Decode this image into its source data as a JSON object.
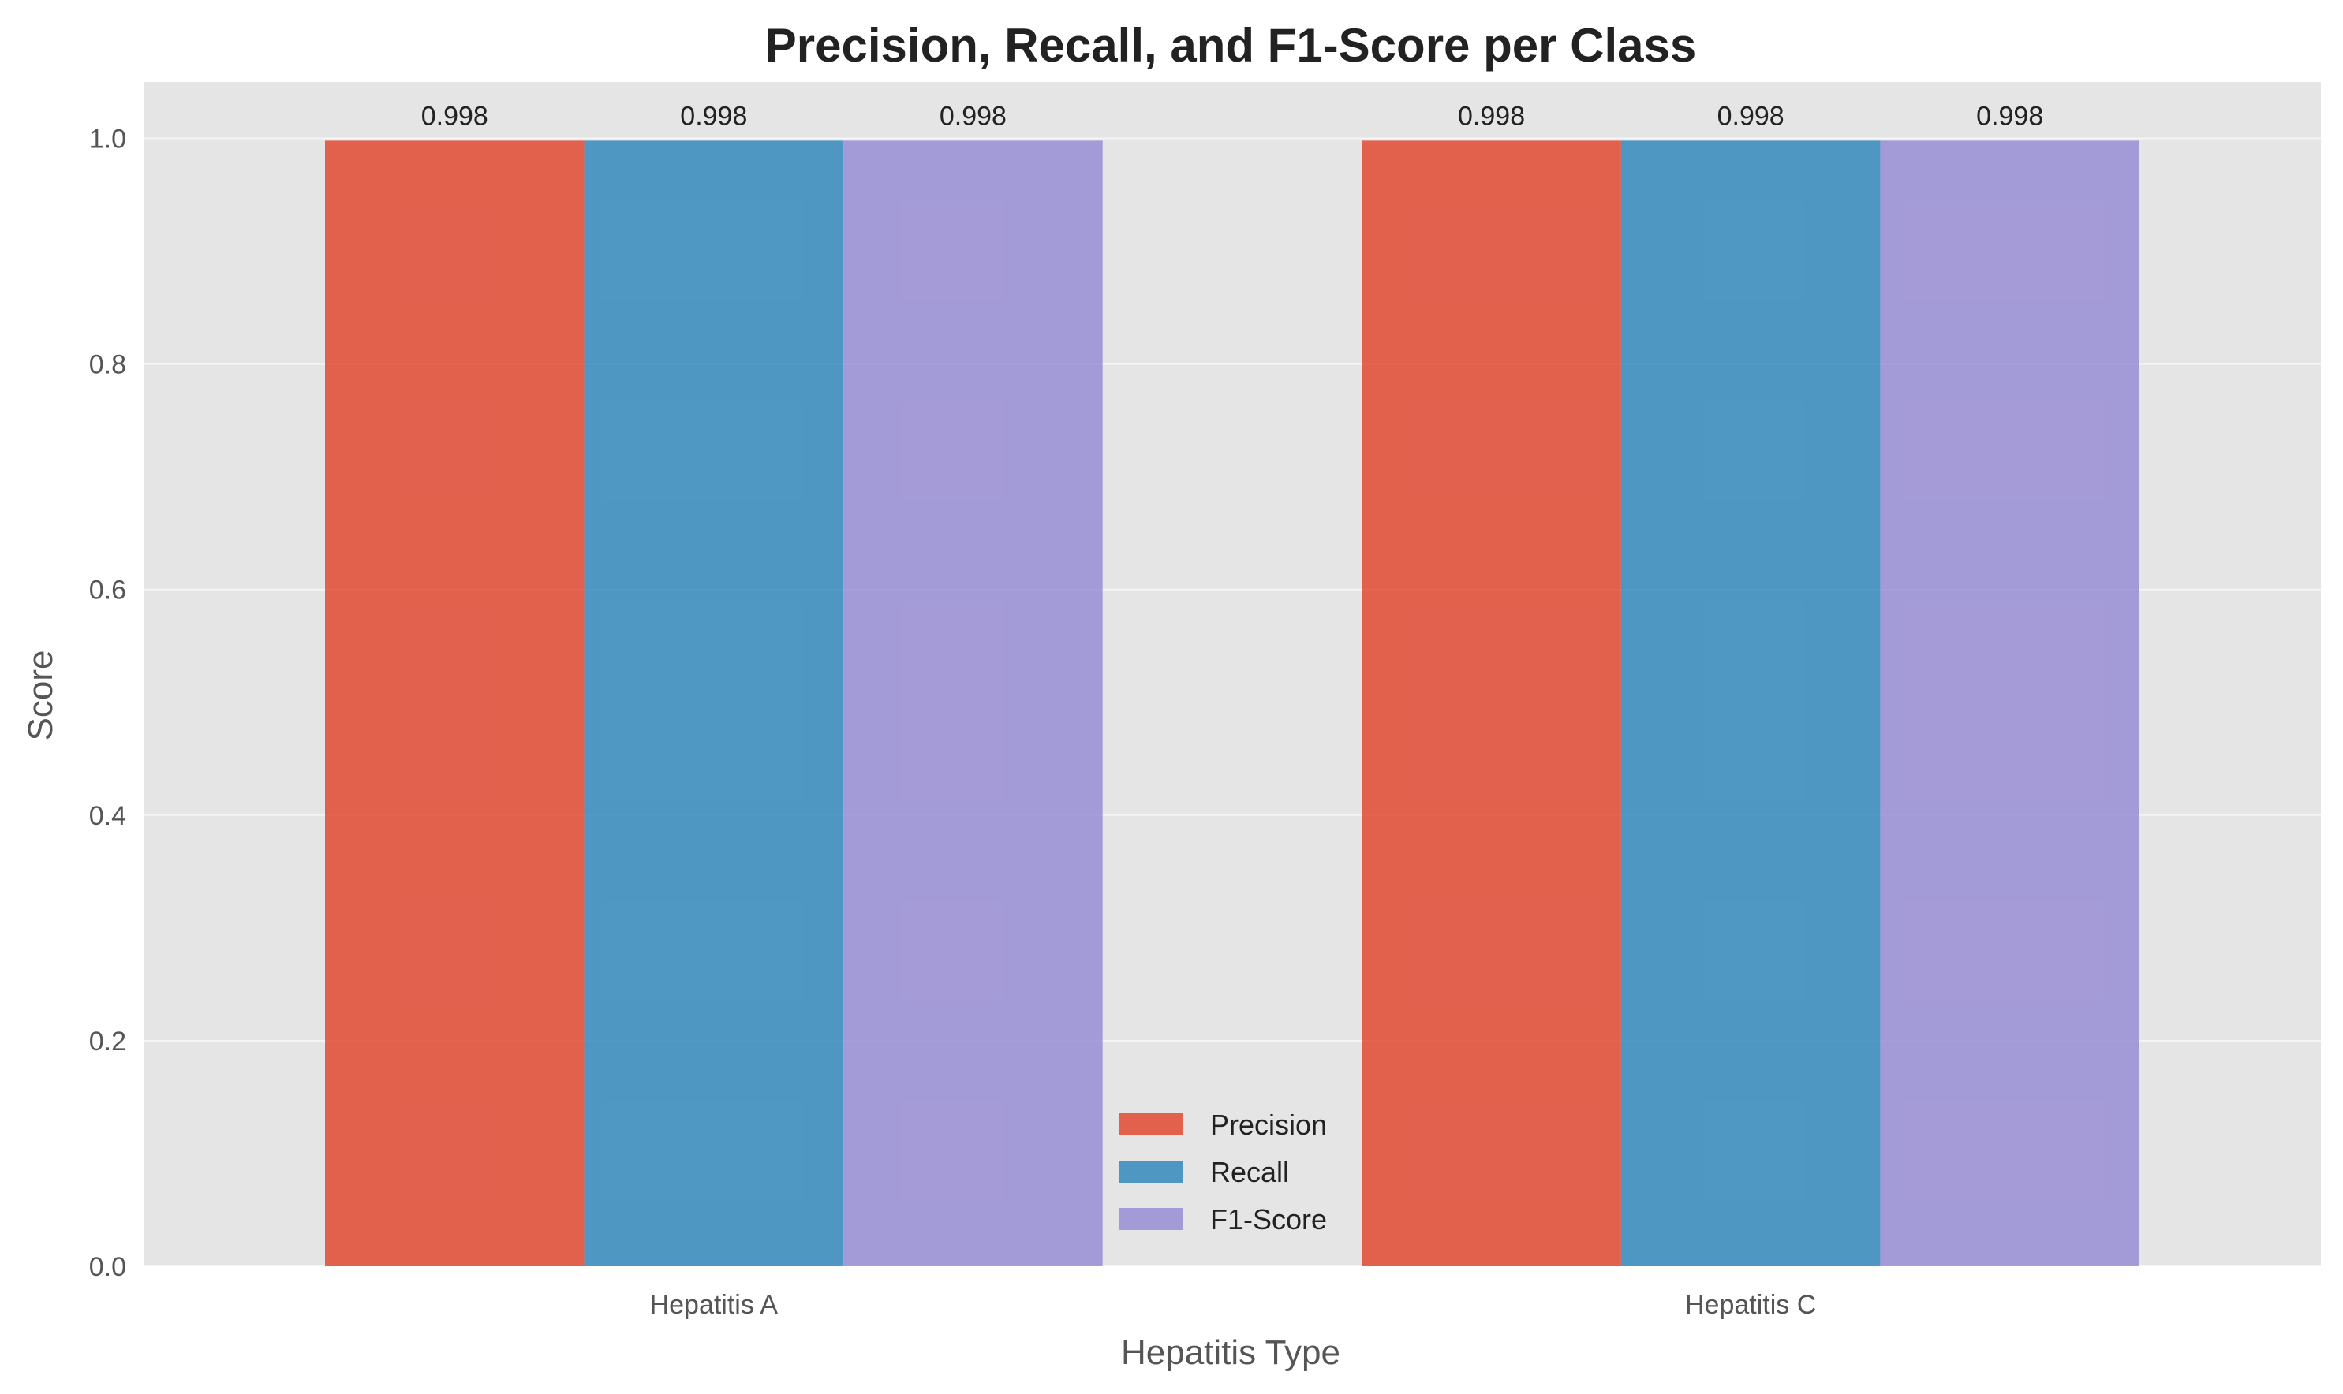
{
  "chart_data": {
    "type": "bar",
    "title": "Precision, Recall, and F1-Score per Class",
    "xlabel": "Hepatitis Type",
    "ylabel": "Score",
    "categories": [
      "Hepatitis A",
      "Hepatitis C"
    ],
    "series": [
      {
        "name": "Precision",
        "values": [
          0.998,
          0.998
        ],
        "color": "#e24a33"
      },
      {
        "name": "Recall",
        "values": [
          0.998,
          0.998
        ],
        "color": "#348abd"
      },
      {
        "name": "F1-Score",
        "values": [
          0.998,
          0.998
        ],
        "color": "#988ed5"
      }
    ],
    "data_labels": [
      "0.998",
      "0.998",
      "0.998",
      "0.998",
      "0.998",
      "0.998"
    ],
    "ylim": [
      0,
      1.05
    ],
    "yticks": [
      0.0,
      0.2,
      0.4,
      0.6,
      0.8,
      1.0
    ],
    "ytick_labels": [
      "0.0",
      "0.2",
      "0.4",
      "0.6",
      "0.8",
      "1.0"
    ],
    "grid": true,
    "legend_position": "bottom-center",
    "plot_background": "#e5e5e5",
    "bar_alpha": 0.85
  }
}
